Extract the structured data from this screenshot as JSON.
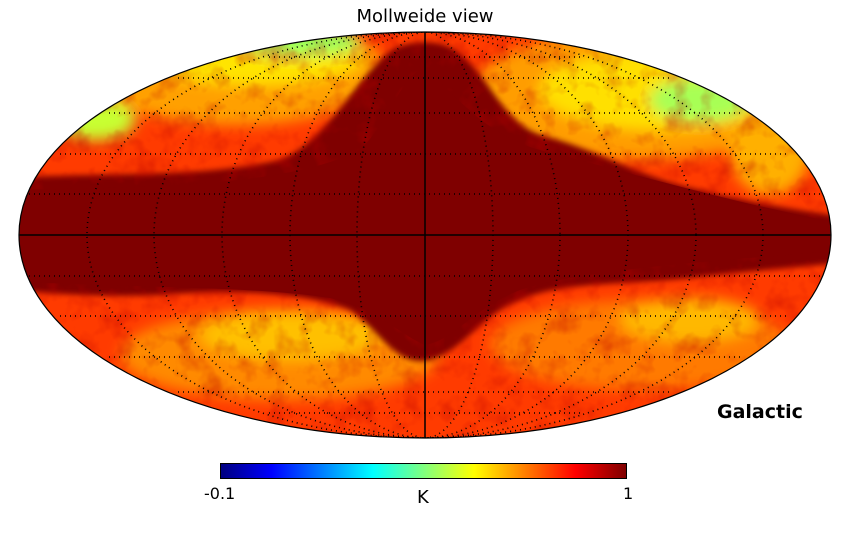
{
  "map": {
    "title": "Mollweide view",
    "projection": "Mollweide",
    "coordinate_system": "Galactic",
    "graticule": "dotted",
    "palette": [
      "#00007f",
      "#0000ff",
      "#007fff",
      "#00ffff",
      "#7fff7f",
      "#ffff00",
      "#ff7f00",
      "#ff0000",
      "#7f0000"
    ]
  },
  "colorbar": {
    "min_label": "-0.1",
    "max_label": "1",
    "unit": "K",
    "min": -0.1,
    "max": 1
  }
}
